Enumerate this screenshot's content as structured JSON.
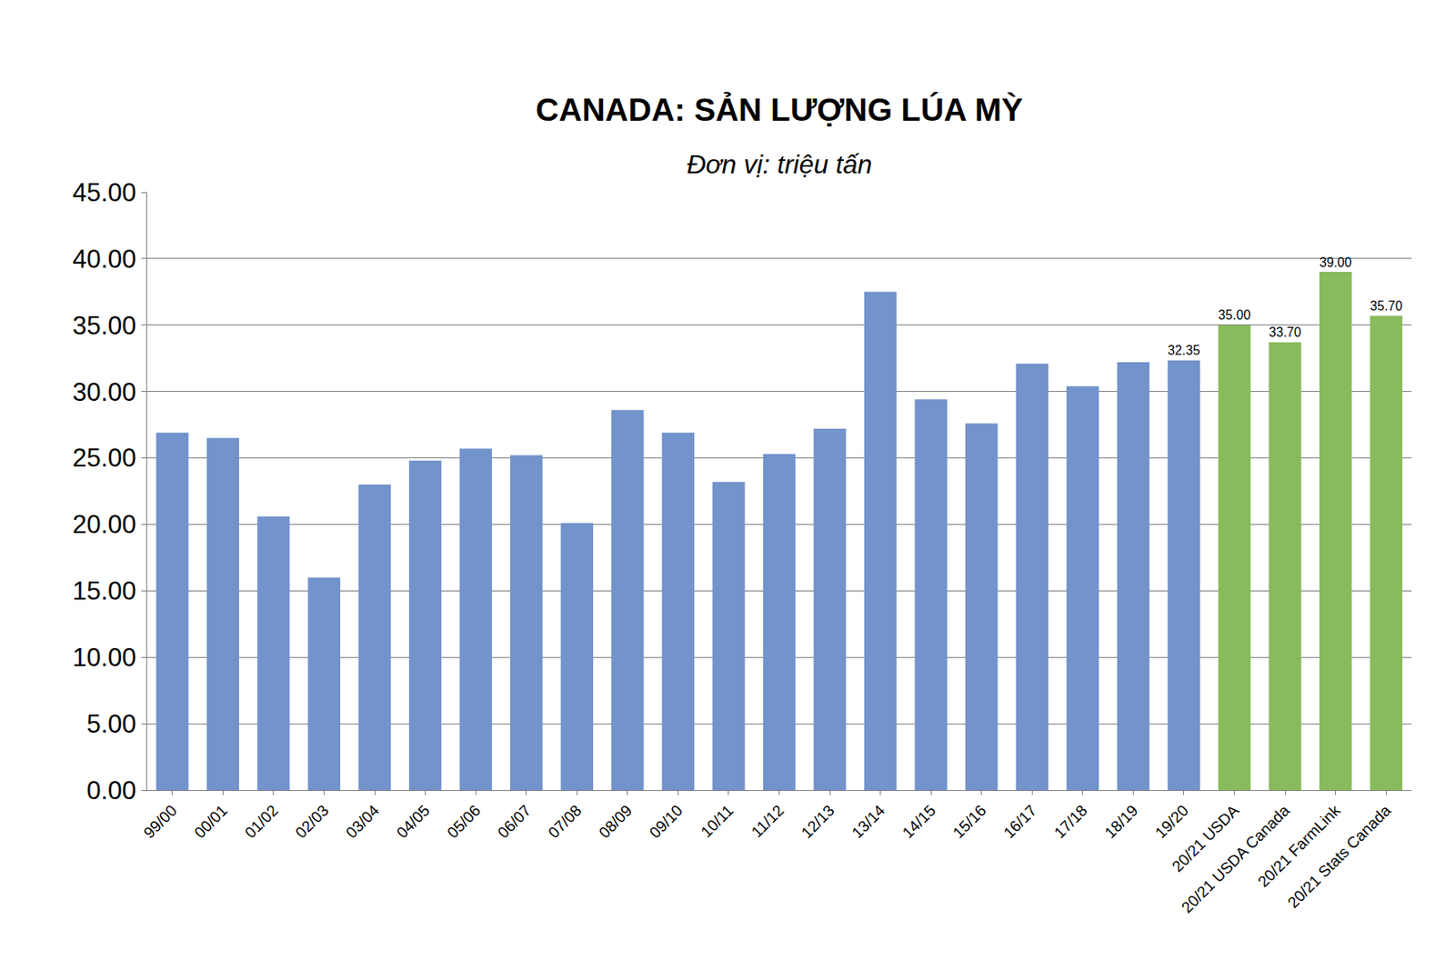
{
  "chart_data": {
    "type": "bar",
    "title": "CANADA: SẢN LƯỢNG LÚA MỲ",
    "subtitle": "Đơn vị: triệu tấn",
    "categories": [
      "99/00",
      "00/01",
      "01/02",
      "02/03",
      "03/04",
      "04/05",
      "05/06",
      "06/07",
      "07/08",
      "08/09",
      "09/10",
      "10/11",
      "11/12",
      "12/13",
      "13/14",
      "14/15",
      "15/16",
      "16/17",
      "17/18",
      "18/19",
      "19/20",
      "20/21 USDA",
      "20/21 USDA Canada",
      "20/21 FarmLink",
      "20/21 Stats Canada"
    ],
    "values": [
      26.9,
      26.5,
      20.6,
      16.0,
      23.0,
      24.8,
      25.7,
      25.2,
      20.1,
      28.6,
      26.9,
      23.2,
      25.3,
      27.2,
      37.5,
      29.4,
      27.6,
      32.1,
      30.4,
      32.2,
      32.35,
      35.0,
      33.7,
      39.0,
      35.7
    ],
    "value_labels": [
      null,
      null,
      null,
      null,
      null,
      null,
      null,
      null,
      null,
      null,
      null,
      null,
      null,
      null,
      null,
      null,
      null,
      null,
      null,
      null,
      "32.35",
      "35.00",
      "33.70",
      "39.00",
      "35.70"
    ],
    "colors": [
      "#7293cb",
      "#7293cb",
      "#7293cb",
      "#7293cb",
      "#7293cb",
      "#7293cb",
      "#7293cb",
      "#7293cb",
      "#7293cb",
      "#7293cb",
      "#7293cb",
      "#7293cb",
      "#7293cb",
      "#7293cb",
      "#7293cb",
      "#7293cb",
      "#7293cb",
      "#7293cb",
      "#7293cb",
      "#7293cb",
      "#7293cb",
      "#87bb5b",
      "#87bb5b",
      "#87bb5b",
      "#87bb5b"
    ],
    "ylim": [
      0,
      45
    ],
    "yticks": [
      {
        "value": 0,
        "label": "0.00"
      },
      {
        "value": 5,
        "label": "5.00"
      },
      {
        "value": 10,
        "label": "10.00"
      },
      {
        "value": 15,
        "label": "15.00"
      },
      {
        "value": 20,
        "label": "20.00"
      },
      {
        "value": 25,
        "label": "25.00"
      },
      {
        "value": 30,
        "label": "30.00"
      },
      {
        "value": 35,
        "label": "35.00"
      },
      {
        "value": 40,
        "label": "40.00"
      },
      {
        "value": 45,
        "label": "45.00"
      }
    ],
    "grid": true,
    "data_labels": true
  }
}
